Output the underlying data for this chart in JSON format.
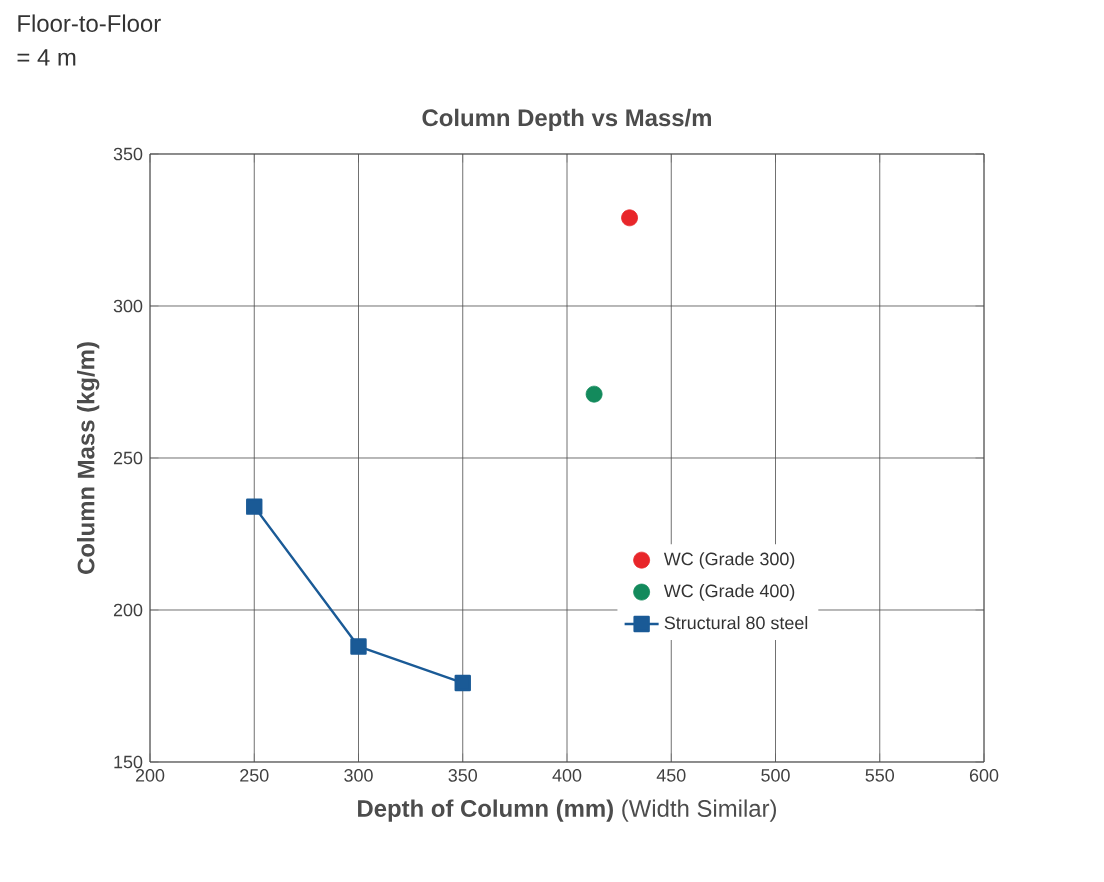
{
  "chart_data": {
    "type": "scatter",
    "title": "Column Depth vs Mass/m",
    "annotations": [
      "Floor-to-Floor\n= 4 m"
    ],
    "xlabel": "**Depth of Column (mm)** (Width Similar)",
    "ylabel": "Column Mass (kg/m)",
    "xlim": [
      200,
      600
    ],
    "ylim": [
      150,
      350
    ],
    "xticks": [
      200,
      250,
      300,
      350,
      400,
      450,
      500,
      550,
      600
    ],
    "yticks": [
      150,
      200,
      250,
      300,
      350
    ],
    "grid": true,
    "legend": "right",
    "series": [
      {
        "name": "WC (Grade 300)",
        "marker": "circle",
        "color": "#e8262a",
        "x": [
          430
        ],
        "values": [
          329
        ]
      },
      {
        "name": "WC (Grade 400)",
        "marker": "circle",
        "color": "#138a5c",
        "x": [
          413
        ],
        "values": [
          271
        ]
      },
      {
        "name": "Structural 80 steel",
        "type": "line",
        "marker": "square",
        "color": "#1a5a96",
        "x": [
          250,
          300,
          350
        ],
        "values": [
          234,
          188,
          176
        ]
      }
    ]
  }
}
